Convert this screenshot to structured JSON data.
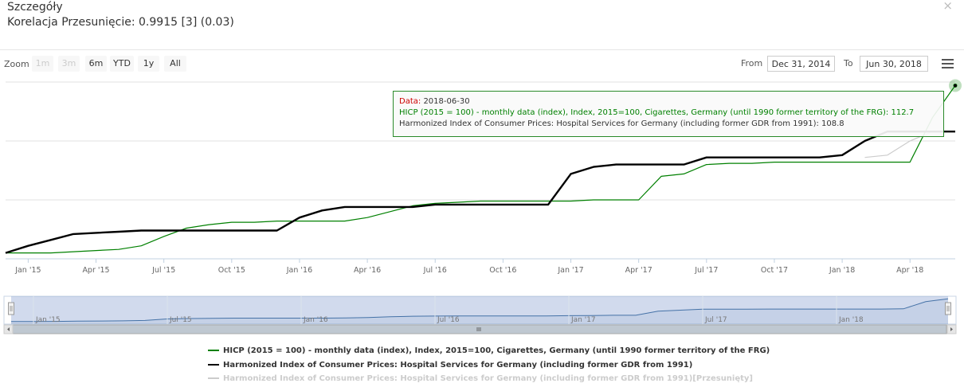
{
  "header": {
    "title": "Szczegóły",
    "subtitle": "Korelacja Przesunięcie: 0.9915 [3] (0.03)",
    "close_icon": "close-icon"
  },
  "range_selector": {
    "zoom_label": "Zoom",
    "buttons": [
      "1m",
      "3m",
      "6m",
      "YTD",
      "1y",
      "All"
    ],
    "disabled": [
      "1m",
      "3m"
    ],
    "from_label": "From",
    "from_value": "Dec 31, 2014",
    "to_label": "To",
    "to_value": "Jun 30, 2018",
    "menu_icon": "hamburger-menu-icon"
  },
  "tooltip": {
    "date_label": "Data:",
    "date_value": "2018-06-30",
    "line1": "HICP (2015 = 100) - monthly data (index), Index, 2015=100, Cigarettes, Germany (until 1990 former territory of the FRG): 112.7",
    "line2": "Harmonized Index of Consumer Prices: Hospital Services for Germany (including former GDR from 1991): 108.8"
  },
  "colors": {
    "green": "#008000",
    "black": "#000000",
    "shifted": "#cccccc",
    "navigator": "#4572a7",
    "date_label": "#cc0000"
  },
  "chart_data": {
    "type": "line",
    "x_ticks": [
      "Jan '15",
      "Apr '15",
      "Jul '15",
      "Oct '15",
      "Jan '16",
      "Apr '16",
      "Jul '16",
      "Oct '16",
      "Jan '17",
      "Apr '17",
      "Jul '17",
      "Oct '17",
      "Jan '18",
      "Apr '18"
    ],
    "navigator_ticks": [
      "Jan '15",
      "Jul '15",
      "Jan '16",
      "Jul '16",
      "Jan '17",
      "Jul '17",
      "Jan '18"
    ],
    "x": [
      "2014-12",
      "2015-01",
      "2015-02",
      "2015-03",
      "2015-04",
      "2015-05",
      "2015-06",
      "2015-07",
      "2015-08",
      "2015-09",
      "2015-10",
      "2015-11",
      "2015-12",
      "2016-01",
      "2016-02",
      "2016-03",
      "2016-04",
      "2016-05",
      "2016-06",
      "2016-07",
      "2016-08",
      "2016-09",
      "2016-10",
      "2016-11",
      "2016-12",
      "2017-01",
      "2017-02",
      "2017-03",
      "2017-04",
      "2017-05",
      "2017-06",
      "2017-07",
      "2017-08",
      "2017-09",
      "2017-10",
      "2017-11",
      "2017-12",
      "2018-01",
      "2018-02",
      "2018-03",
      "2018-04",
      "2018-05",
      "2018-06"
    ],
    "series": [
      {
        "name": "HICP (2015 = 100) - monthly data (index), Index, 2015=100, Cigarettes, Germany (until 1990 former territory of the FRG)",
        "color": "#008000",
        "values": [
          98.5,
          98.5,
          98.5,
          98.6,
          98.7,
          98.8,
          99.1,
          99.9,
          100.6,
          100.9,
          101.1,
          101.1,
          101.2,
          101.2,
          101.2,
          101.2,
          101.5,
          102.0,
          102.5,
          102.7,
          102.8,
          102.9,
          102.9,
          102.9,
          102.9,
          102.9,
          103.0,
          103.0,
          103.0,
          105.0,
          105.2,
          106.0,
          106.1,
          106.1,
          106.2,
          106.2,
          106.2,
          106.2,
          106.2,
          106.2,
          106.2,
          110.0,
          112.7
        ]
      },
      {
        "name": "Harmonized Index of Consumer Prices: Hospital Services for Germany (including former GDR from 1991)",
        "color": "#000000",
        "values": [
          98.5,
          99.1,
          99.6,
          100.1,
          100.2,
          100.3,
          100.4,
          100.4,
          100.4,
          100.4,
          100.4,
          100.4,
          100.4,
          101.5,
          102.1,
          102.4,
          102.4,
          102.4,
          102.4,
          102.6,
          102.6,
          102.6,
          102.6,
          102.6,
          102.6,
          105.2,
          105.8,
          106.0,
          106.0,
          106.0,
          106.0,
          106.6,
          106.6,
          106.6,
          106.6,
          106.6,
          106.6,
          106.8,
          108.0,
          108.8,
          108.8,
          108.8,
          108.8
        ]
      },
      {
        "name": "Harmonized Index of Consumer Prices: Hospital Services for Germany (including former GDR from 1991)[Przesunięty]",
        "color": "#cccccc",
        "values": [
          null,
          null,
          null,
          null,
          null,
          null,
          null,
          null,
          null,
          null,
          null,
          null,
          null,
          null,
          null,
          null,
          null,
          null,
          null,
          null,
          null,
          null,
          null,
          null,
          null,
          null,
          null,
          null,
          null,
          null,
          null,
          null,
          null,
          null,
          null,
          null,
          null,
          null,
          106.6,
          106.8,
          108.0,
          108.8,
          108.8
        ]
      }
    ],
    "navigator_values": [
      98.5,
      98.5,
      98.6,
      98.7,
      98.8,
      98.9,
      99.1,
      99.9,
      100.1,
      100.2,
      100.3,
      100.3,
      100.3,
      100.3,
      100.3,
      100.4,
      100.6,
      101.0,
      101.3,
      101.4,
      101.5,
      101.5,
      101.5,
      101.5,
      101.5,
      101.6,
      101.7,
      101.8,
      101.8,
      104.0,
      104.5,
      105.0,
      105.0,
      105.0,
      105.1,
      105.1,
      105.1,
      105.1,
      105.1,
      105.1,
      105.2,
      109.0,
      110.5
    ],
    "ylim": [
      98,
      113
    ]
  },
  "legend": [
    "HICP (2015 = 100) - monthly data (index), Index, 2015=100, Cigarettes, Germany (until 1990 former territory of the FRG)",
    "Harmonized Index of Consumer Prices: Hospital Services for Germany (including former GDR from 1991)",
    "Harmonized Index of Consumer Prices: Hospital Services for Germany (including former GDR from 1991)[Przesunięty]"
  ]
}
